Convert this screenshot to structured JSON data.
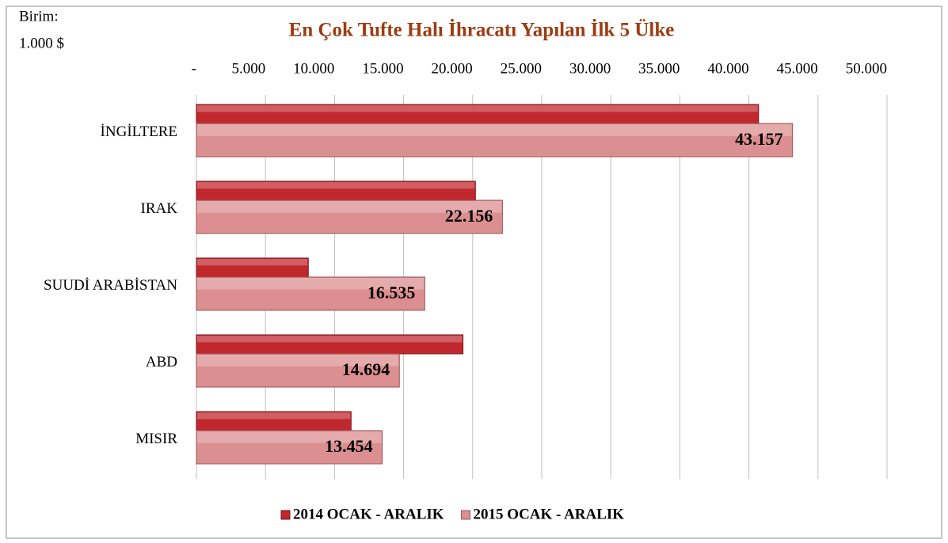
{
  "chart_data": {
    "type": "barh",
    "title": "En Çok Tufte Halı İhracatı Yapılan İlk 5 Ülke",
    "unit_note": [
      "Birim:",
      "1.000 $"
    ],
    "categories": [
      "İNGİLTERE",
      "IRAK",
      "SUUDİ ARABİSTAN",
      "ABD",
      "MISIR"
    ],
    "series": [
      {
        "name": "2014 OCAK - ARALIK",
        "color": "#c0282e",
        "values": [
          40700,
          20200,
          8100,
          19300,
          11200
        ]
      },
      {
        "name": "2015 OCAK - ARALIK",
        "color": "#dc8f90",
        "values": [
          43157,
          22156,
          16535,
          14694,
          13454
        ],
        "value_labels": [
          "43.157",
          "22.156",
          "16.535",
          "14.694",
          "13.454"
        ]
      }
    ],
    "xlim": [
      0,
      50000
    ],
    "xticks": [
      {
        "value": 0,
        "label": "-"
      },
      {
        "value": 5000,
        "label": "5.000"
      },
      {
        "value": 10000,
        "label": "10.000"
      },
      {
        "value": 15000,
        "label": "15.000"
      },
      {
        "value": 20000,
        "label": "20.000"
      },
      {
        "value": 25000,
        "label": "25.000"
      },
      {
        "value": 30000,
        "label": "30.000"
      },
      {
        "value": 35000,
        "label": "35.000"
      },
      {
        "value": 40000,
        "label": "40.000"
      },
      {
        "value": 45000,
        "label": "45.000"
      },
      {
        "value": 50000,
        "label": "50.000"
      }
    ],
    "grid": true,
    "legend": "bottom"
  }
}
